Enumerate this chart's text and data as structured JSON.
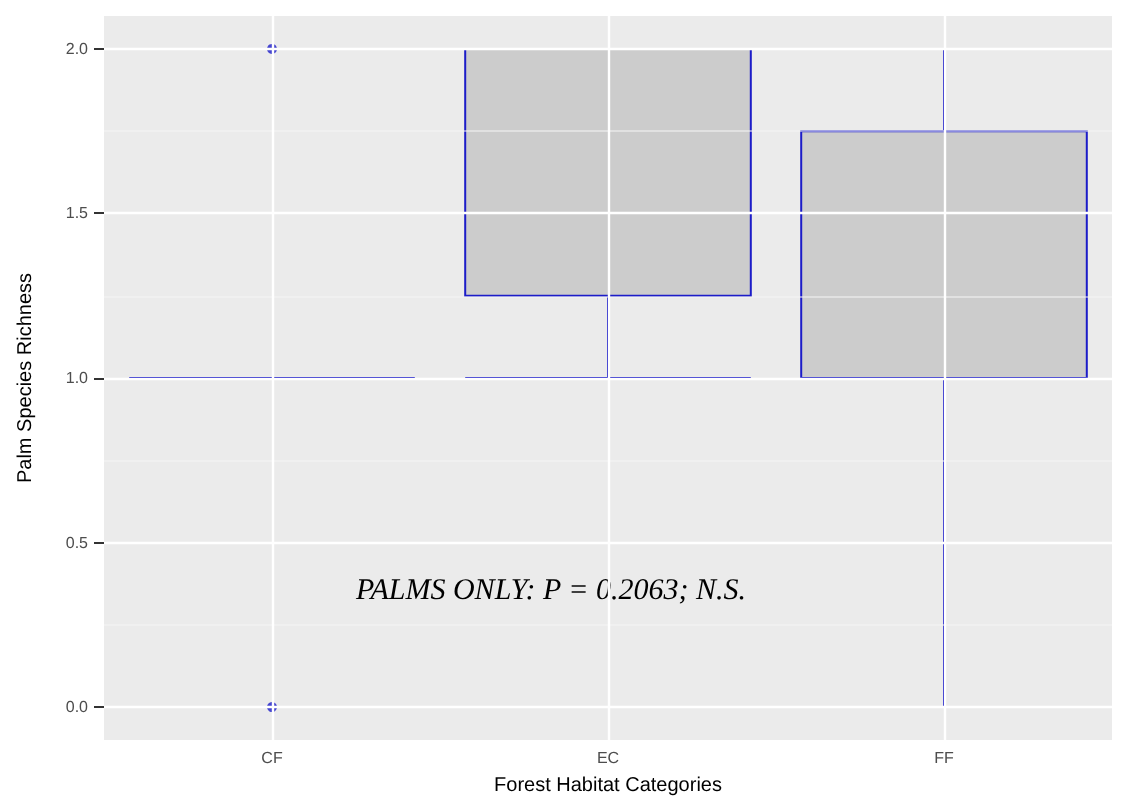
{
  "chart_data": {
    "type": "box",
    "xlabel": "Forest Habitat Categories",
    "ylabel": "Palm Species Richness",
    "categories": [
      "CF",
      "EC",
      "FF"
    ],
    "series": [
      {
        "color": "#1c1cc8",
        "boxes": [
          {
            "low": 1,
            "q1": 1,
            "median": 1,
            "q3": 1,
            "high": 1,
            "outliers": [
              0,
              2
            ]
          },
          {
            "low": 1,
            "q1": 1.25,
            "median": 2,
            "q3": 2,
            "high": 2
          },
          {
            "low": 0,
            "q1": 1,
            "median": 1,
            "q3": 1.75,
            "high": 2
          }
        ]
      }
    ],
    "ylim": [
      -0.1,
      2.1
    ],
    "yticks": [
      {
        "value": 0,
        "label": "0.0"
      },
      0.5,
      {
        "value": 1,
        "label": "1.0"
      },
      1.5,
      {
        "value": 2,
        "label": "2.0"
      }
    ],
    "grid": true,
    "annotations": [
      "PALMS ONLY: P = 0.2063; N.S."
    ]
  }
}
